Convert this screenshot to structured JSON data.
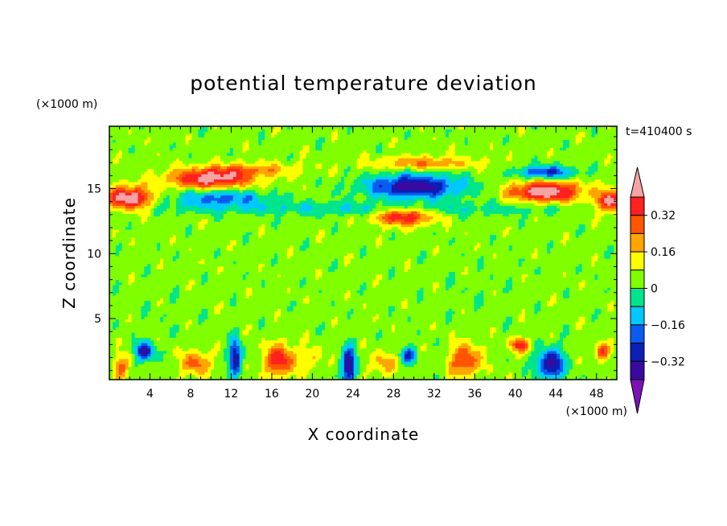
{
  "chart_data": {
    "type": "heatmap",
    "title": "potential temperature deviation",
    "xlabel": "X coordinate",
    "ylabel": "Z coordinate",
    "x_unit": "(×1000 m)",
    "y_unit": "(×1000 m)",
    "time_label": "t=410400 s",
    "xlim": [
      0,
      50
    ],
    "ylim": [
      0.3,
      19.8
    ],
    "x_ticks": [
      4,
      8,
      12,
      16,
      20,
      24,
      28,
      32,
      36,
      40,
      44,
      48
    ],
    "y_ticks": [
      5,
      10,
      15
    ],
    "colorbar": {
      "ticks": [
        0.32,
        0.16,
        0,
        -0.16,
        -0.32
      ],
      "tick_labels": [
        "0.32",
        "0.16",
        "0",
        "−0.16",
        "−0.32"
      ],
      "levels": [
        -0.4,
        -0.32,
        -0.24,
        -0.16,
        -0.08,
        0,
        0.08,
        0.16,
        0.24,
        0.32,
        0.4
      ],
      "colors": [
        "#7b12b5",
        "#3a0aa0",
        "#0b1fb5",
        "#0a5cf0",
        "#00c8ff",
        "#00e58c",
        "#80ff00",
        "#ffff00",
        "#ffa500",
        "#ff5500",
        "#ff2020",
        "#f5a3a3"
      ]
    },
    "background_level": 0.04,
    "features": [
      {
        "x": 2,
        "z": 14.3,
        "sx": 2.2,
        "sz": 0.9,
        "v": 0.45
      },
      {
        "x": 10,
        "z": 15.8,
        "sx": 4.0,
        "sz": 0.7,
        "v": 0.42
      },
      {
        "x": 11,
        "z": 14.3,
        "sx": 4.5,
        "sz": 0.6,
        "v": -0.24
      },
      {
        "x": 14,
        "z": 16.5,
        "sx": 5.0,
        "sz": 0.5,
        "v": 0.18
      },
      {
        "x": 30,
        "z": 15.2,
        "sx": 4.5,
        "sz": 0.9,
        "v": -0.42
      },
      {
        "x": 31,
        "z": 17.0,
        "sx": 5.0,
        "sz": 0.5,
        "v": 0.2
      },
      {
        "x": 29,
        "z": 12.9,
        "sx": 2.8,
        "sz": 0.7,
        "v": 0.36
      },
      {
        "x": 43,
        "z": 14.8,
        "sx": 3.5,
        "sz": 0.8,
        "v": 0.45
      },
      {
        "x": 43,
        "z": 16.3,
        "sx": 2.8,
        "sz": 0.5,
        "v": -0.3
      },
      {
        "x": 49.5,
        "z": 14.0,
        "sx": 1.5,
        "sz": 0.8,
        "v": 0.42
      },
      {
        "x": 25,
        "z": 13.5,
        "sx": 22,
        "sz": 0.5,
        "v": -0.12
      },
      {
        "x": 3.5,
        "z": 2.5,
        "sx": 0.9,
        "sz": 0.7,
        "v": -0.38
      },
      {
        "x": 1.2,
        "z": 1.3,
        "sx": 0.8,
        "sz": 0.9,
        "v": 0.22
      },
      {
        "x": 8.5,
        "z": 1.6,
        "sx": 1.4,
        "sz": 0.9,
        "v": 0.24
      },
      {
        "x": 12.4,
        "z": 2.0,
        "sx": 0.6,
        "sz": 1.4,
        "v": -0.4
      },
      {
        "x": 16.8,
        "z": 1.8,
        "sx": 1.5,
        "sz": 1.2,
        "v": 0.34
      },
      {
        "x": 23.6,
        "z": 1.4,
        "sx": 0.7,
        "sz": 1.4,
        "v": -0.42
      },
      {
        "x": 29.5,
        "z": 2.2,
        "sx": 0.8,
        "sz": 0.6,
        "v": -0.3
      },
      {
        "x": 27,
        "z": 1.6,
        "sx": 1.4,
        "sz": 0.9,
        "v": 0.15
      },
      {
        "x": 35,
        "z": 1.8,
        "sx": 1.5,
        "sz": 1.2,
        "v": 0.3
      },
      {
        "x": 40.5,
        "z": 3.0,
        "sx": 0.9,
        "sz": 0.5,
        "v": 0.35
      },
      {
        "x": 43.5,
        "z": 1.5,
        "sx": 1.3,
        "sz": 1.2,
        "v": -0.4
      },
      {
        "x": 48.5,
        "z": 2.5,
        "sx": 0.7,
        "sz": 0.6,
        "v": 0.3
      },
      {
        "x": 20,
        "z": 2.0,
        "sx": 1.0,
        "sz": 0.8,
        "v": 0.12
      },
      {
        "x": 6,
        "z": 5.5,
        "sx": 3,
        "sz": 1.5,
        "v": -0.02
      },
      {
        "x": 36,
        "z": 7,
        "sx": 4,
        "sz": 2,
        "v": -0.02
      }
    ]
  }
}
